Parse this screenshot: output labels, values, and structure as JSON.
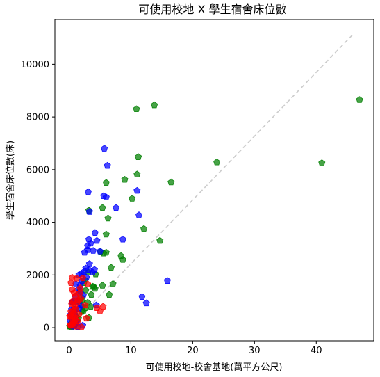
{
  "chart_data": {
    "type": "scatter",
    "title": "可使用校地 X 學生宿舍床位數",
    "xlabel": "可使用校地-校舍基地(萬平方公尺)",
    "ylabel": "學生宿舍床位數(床)",
    "xlim": [
      -2.3,
      49.3
    ],
    "ylim": [
      -500,
      11700
    ],
    "xticks": [
      0,
      10,
      20,
      30,
      40
    ],
    "yticks": [
      0,
      2000,
      4000,
      6000,
      8000,
      10000
    ],
    "grid": false,
    "marker": "pentagon",
    "trend_line": {
      "x": [
        0,
        46
      ],
      "y": [
        0,
        11150
      ],
      "color": "#cccccc",
      "style": "dashed"
    },
    "series": [
      {
        "color": "#008000",
        "x": [
          47.0,
          13.8,
          10.9,
          40.9,
          23.9,
          11.2,
          16.5,
          11.0,
          9.0,
          6.0,
          10.2,
          5.4,
          3.2,
          6.3,
          12.1,
          6.0,
          14.7,
          5.1,
          8.4,
          5.6,
          6.0,
          8.7,
          6.8,
          4.3,
          3.1,
          5.4,
          7.1,
          6.5,
          3.8,
          2.7,
          4.2,
          2.0,
          3.6,
          1.7,
          3.0,
          2.2,
          1.4,
          2.6,
          0.9,
          2.0,
          1.3,
          3.2,
          0.6,
          0.5,
          1.5,
          0.9,
          0.3,
          0.2,
          0.4,
          0.1,
          1.0,
          0.7,
          1.8,
          2.4,
          2.5,
          3.5,
          2.3,
          1.2,
          0.6,
          4.0,
          2.1
        ],
        "y": [
          8650,
          8450,
          8300,
          6250,
          6280,
          6480,
          5520,
          5820,
          5620,
          5500,
          4900,
          4550,
          4450,
          4150,
          3750,
          3540,
          3300,
          2880,
          2720,
          2820,
          2850,
          2580,
          2280,
          2030,
          2100,
          1600,
          1660,
          1250,
          1560,
          1420,
          1480,
          1150,
          1250,
          1000,
          950,
          800,
          1000,
          750,
          500,
          600,
          280,
          380,
          200,
          300,
          350,
          100,
          150,
          50,
          20,
          50,
          700,
          450,
          1400,
          1700,
          1820,
          800,
          620,
          400,
          950,
          1550,
          1050
        ]
      },
      {
        "color": "#0000ff",
        "x": [
          5.7,
          6.2,
          3.1,
          5.6,
          6.0,
          11.0,
          7.6,
          3.3,
          11.3,
          3.2,
          4.2,
          8.7,
          3.5,
          3.0,
          4.5,
          3.9,
          3.0,
          5.0,
          2.5,
          3.3,
          4.1,
          2.7,
          2.0,
          1.6,
          2.4,
          3.2,
          15.9,
          11.8,
          12.5,
          2.1,
          1.1,
          1.8,
          1.5,
          2.3,
          1.0,
          0.7,
          1.3,
          0.5,
          1.9,
          0.8,
          1.6,
          0.4,
          0.3,
          0.9,
          0.6,
          0.2,
          1.2,
          1.0,
          2.2,
          1.4,
          0.7,
          0.5,
          2.8,
          3.8,
          4.4,
          1.7,
          0.9,
          0.3
        ],
        "y": [
          6800,
          6150,
          5150,
          5000,
          4950,
          5200,
          4550,
          4400,
          4270,
          3350,
          3600,
          3350,
          3200,
          3100,
          3300,
          2920,
          2950,
          2900,
          2850,
          2420,
          2200,
          2250,
          2050,
          2000,
          2120,
          2200,
          1780,
          1170,
          930,
          1780,
          1650,
          1600,
          1450,
          1230,
          1180,
          1000,
          980,
          950,
          850,
          700,
          720,
          680,
          500,
          450,
          320,
          250,
          200,
          150,
          80,
          30,
          50,
          120,
          1900,
          2100,
          850,
          1350,
          600,
          80
        ]
      },
      {
        "color": "#ff0000",
        "x": [
          0.5,
          1.2,
          2.2,
          1.8,
          3.0,
          1.0,
          0.8,
          1.5,
          2.6,
          1.3,
          0.6,
          0.4,
          1.1,
          0.9,
          5.0,
          5.5,
          4.5,
          0.3,
          0.7,
          1.6,
          0.2,
          0.1,
          0.5,
          2.8,
          1.4,
          0.8,
          1.0,
          0.6,
          0.4,
          0.3,
          0.2,
          1.2,
          2.0,
          0.9,
          0.7,
          1.9,
          0.5,
          1.7,
          0.3
        ],
        "y": [
          1900,
          1870,
          1880,
          1500,
          1650,
          1200,
          1320,
          1050,
          850,
          950,
          1000,
          900,
          700,
          820,
          620,
          800,
          750,
          600,
          550,
          500,
          450,
          420,
          380,
          350,
          250,
          200,
          300,
          150,
          120,
          80,
          100,
          50,
          20,
          400,
          650,
          1100,
          1450,
          1300,
          1700
        ]
      }
    ]
  }
}
